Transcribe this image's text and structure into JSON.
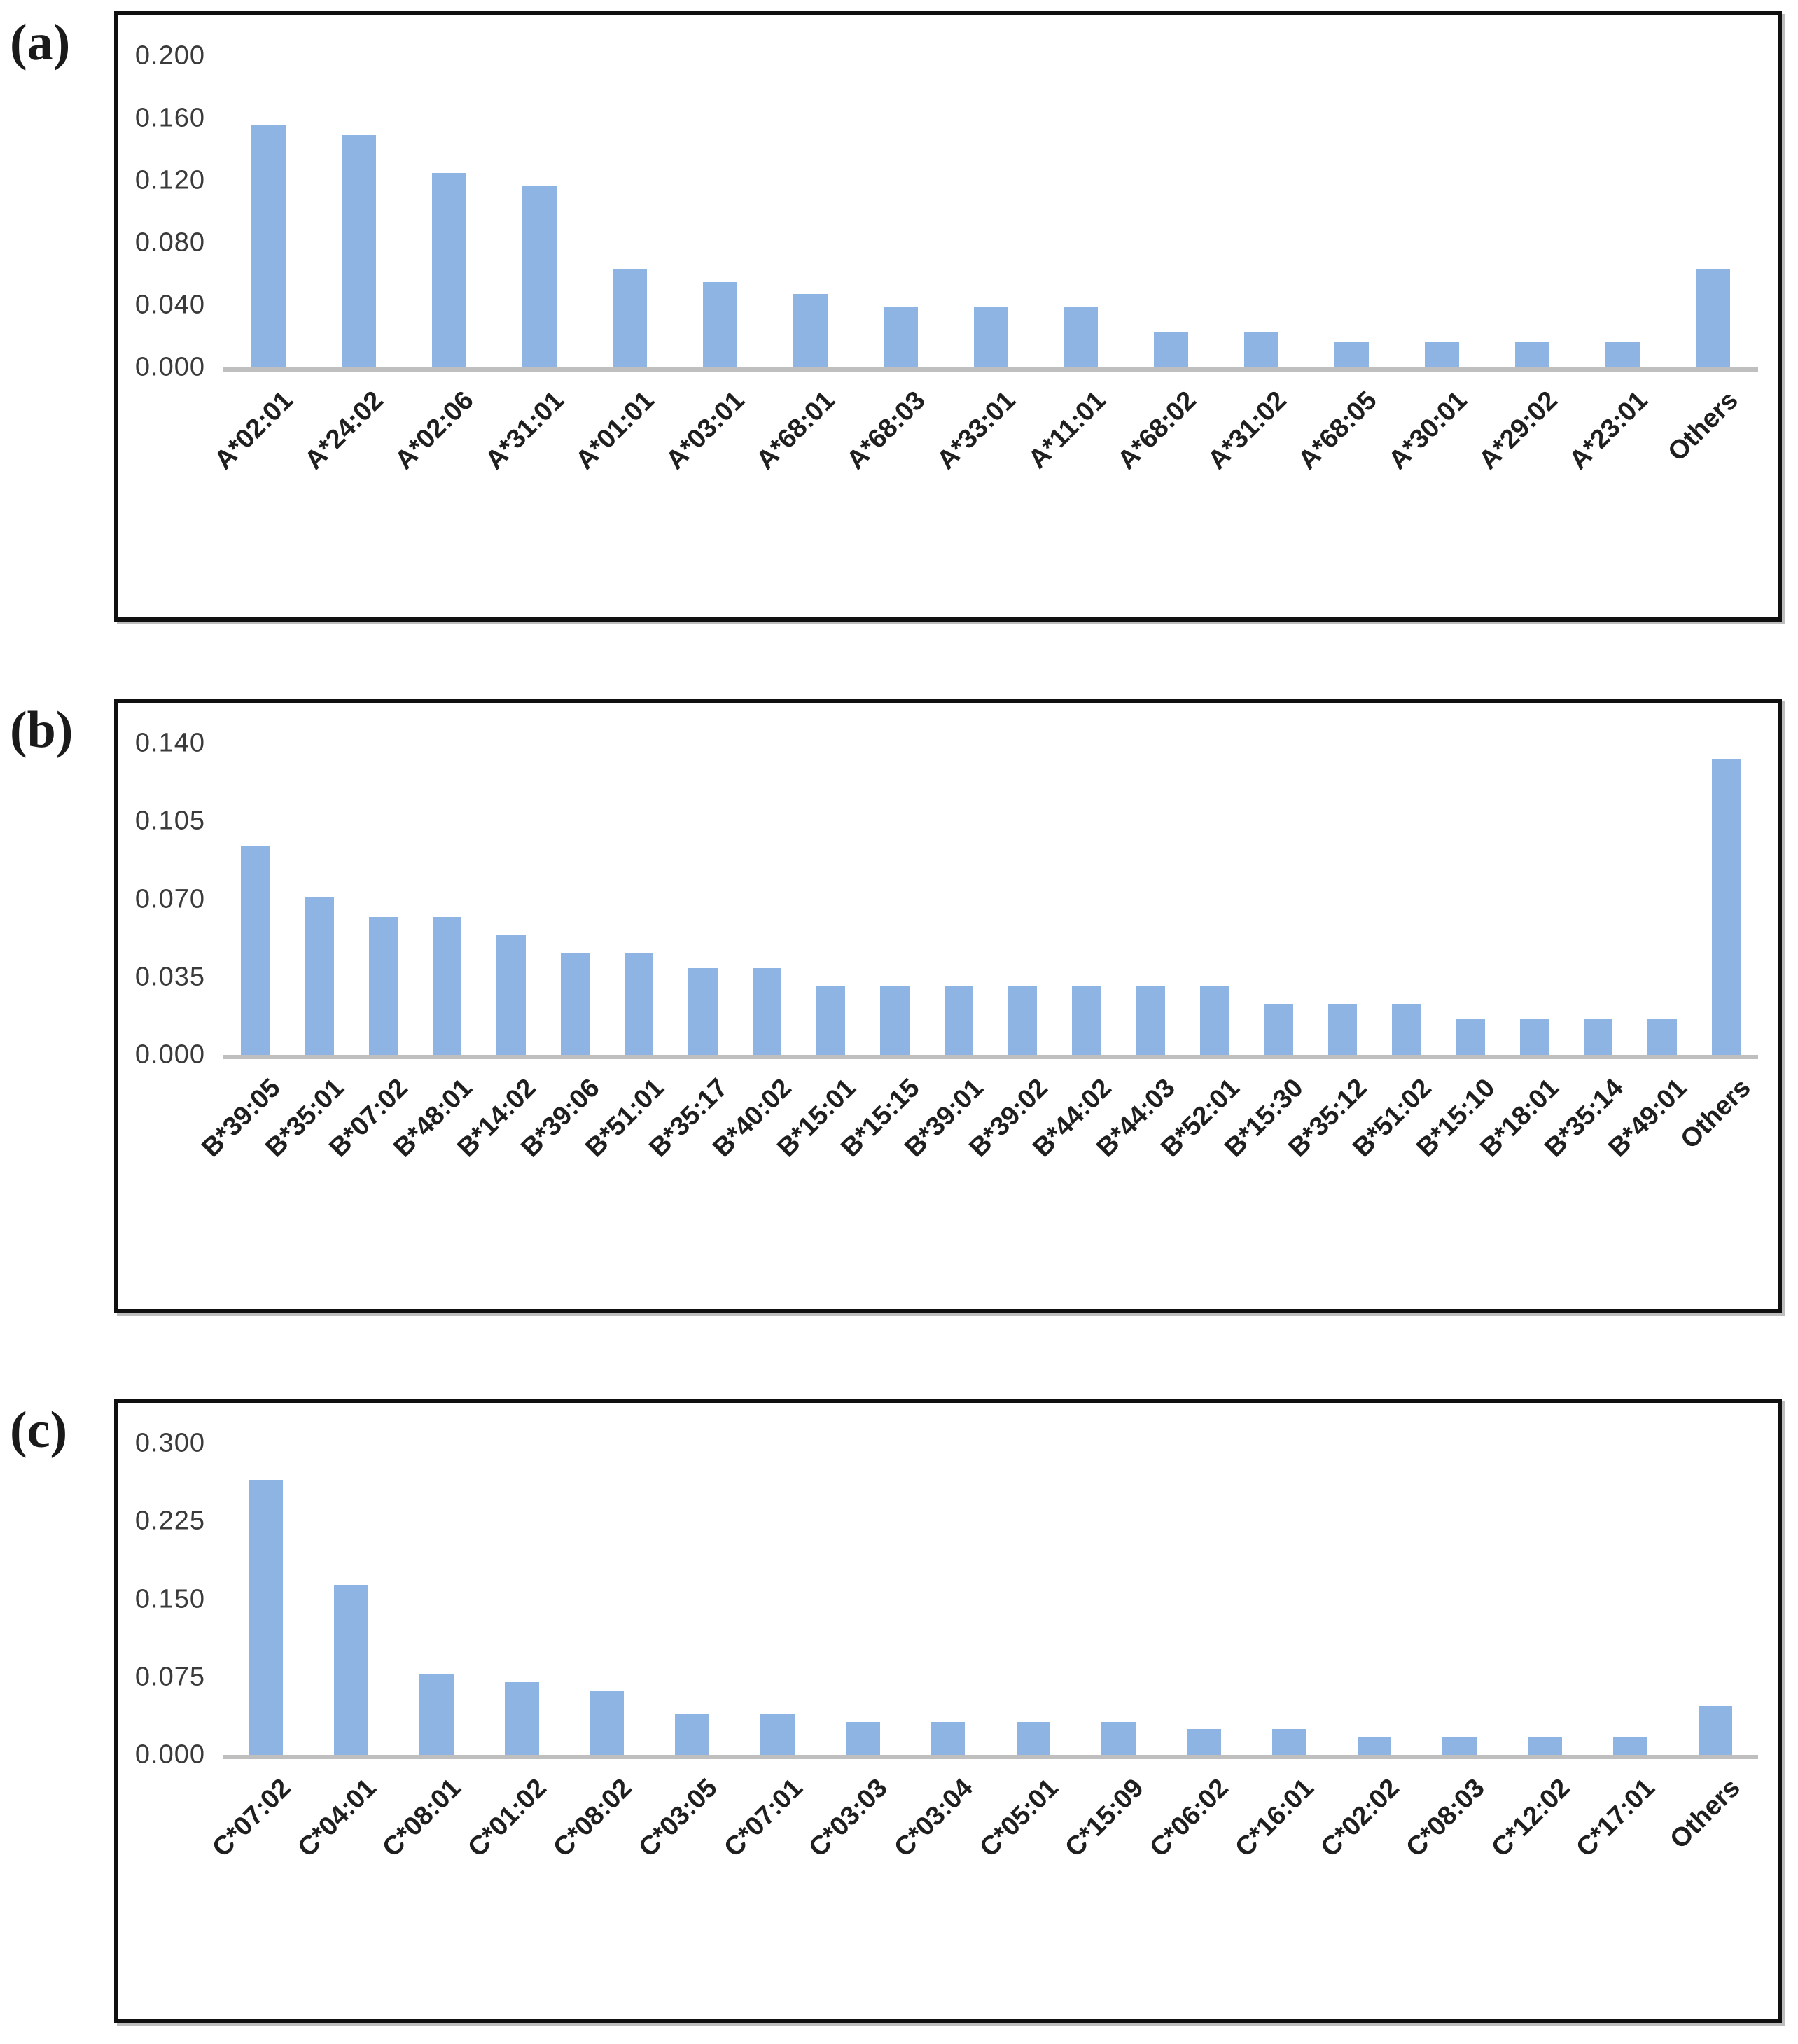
{
  "figure": {
    "background": "#ffffff",
    "panel_labels": [
      "(a)",
      "(b)",
      "(c)"
    ]
  },
  "chart_data": [
    {
      "panel_label": "(a)",
      "type": "bar",
      "title": "",
      "xlabel": "",
      "ylabel": "",
      "grid": false,
      "legend_position": "none",
      "bar_color": "#8DB4E2",
      "baseline_color": "#BFBFBF",
      "ylim": [
        0,
        0.2
      ],
      "yticks": [
        0.2,
        0.16,
        0.12,
        0.08,
        0.04,
        0.0
      ],
      "ytick_labels": [
        "0.200",
        "0.160",
        "0.120",
        "0.080",
        "0.040",
        "0.000"
      ],
      "categories": [
        "A*02:01",
        "A*24:02",
        "A*02:06",
        "A*31:01",
        "A*01:01",
        "A*03:01",
        "A*68:01",
        "A*68:03",
        "A*33:01",
        "A*11:01",
        "A*68:02",
        "A*31:02",
        "A*68:05",
        "A*30:01",
        "A*29:02",
        "A*23:01",
        "Others"
      ],
      "values": [
        0.156,
        0.149,
        0.125,
        0.117,
        0.063,
        0.055,
        0.047,
        0.039,
        0.039,
        0.039,
        0.023,
        0.023,
        0.016,
        0.016,
        0.016,
        0.016,
        0.063
      ]
    },
    {
      "panel_label": "(b)",
      "type": "bar",
      "title": "",
      "xlabel": "",
      "ylabel": "",
      "grid": false,
      "legend_position": "none",
      "bar_color": "#8DB4E2",
      "baseline_color": "#BFBFBF",
      "ylim": [
        0,
        0.14
      ],
      "yticks": [
        0.14,
        0.105,
        0.07,
        0.035,
        0.0
      ],
      "ytick_labels": [
        "0.140",
        "0.105",
        "0.070",
        "0.035",
        "0.000"
      ],
      "categories": [
        "B*39:05",
        "B*35:01",
        "B*07:02",
        "B*48:01",
        "B*14:02",
        "B*39:06",
        "B*51:01",
        "B*35:17",
        "B*40:02",
        "B*15:01",
        "B*15:15",
        "B*39:01",
        "B*39:02",
        "B*44:02",
        "B*44:03",
        "B*52:01",
        "B*15:30",
        "B*35:12",
        "B*51:02",
        "B*15:10",
        "B*18:01",
        "B*35:14",
        "B*49:01",
        "Others"
      ],
      "values": [
        0.094,
        0.071,
        0.062,
        0.062,
        0.054,
        0.046,
        0.046,
        0.039,
        0.039,
        0.031,
        0.031,
        0.031,
        0.031,
        0.031,
        0.031,
        0.031,
        0.023,
        0.023,
        0.023,
        0.016,
        0.016,
        0.016,
        0.016,
        0.133
      ]
    },
    {
      "panel_label": "(c)",
      "type": "bar",
      "title": "",
      "xlabel": "",
      "ylabel": "",
      "grid": false,
      "legend_position": "none",
      "bar_color": "#8DB4E2",
      "baseline_color": "#BFBFBF",
      "ylim": [
        0,
        0.3
      ],
      "yticks": [
        0.3,
        0.225,
        0.15,
        0.075,
        0.0
      ],
      "ytick_labels": [
        "0.300",
        "0.225",
        "0.150",
        "0.075",
        "0.000"
      ],
      "categories": [
        "C*07:02",
        "C*04:01",
        "C*08:01",
        "C*01:02",
        "C*08:02",
        "C*03:05",
        "C*07:01",
        "C*03:03",
        "C*03:04",
        "C*05:01",
        "C*15:09",
        "C*06:02",
        "C*16:01",
        "C*02:02",
        "C*08:03",
        "C*12:02",
        "C*17:01",
        "Others"
      ],
      "values": [
        0.265,
        0.164,
        0.078,
        0.07,
        0.062,
        0.04,
        0.04,
        0.032,
        0.032,
        0.032,
        0.032,
        0.025,
        0.025,
        0.017,
        0.017,
        0.017,
        0.017,
        0.047
      ]
    }
  ]
}
